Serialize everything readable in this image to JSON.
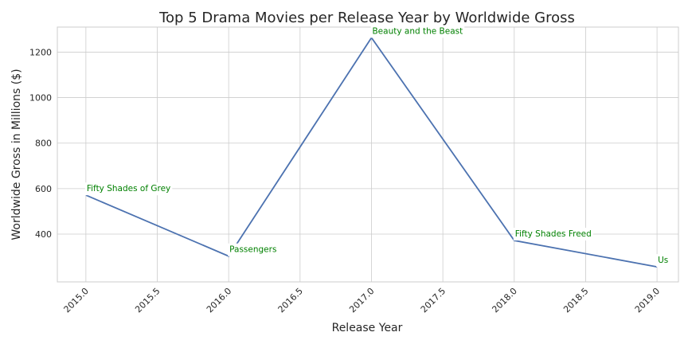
{
  "chart_data": {
    "type": "line",
    "title": "Top 5 Drama Movies per Release Year by Worldwide Gross",
    "xlabel": "Release Year",
    "ylabel": "Worldwide Gross in Millions ($)",
    "xlim": [
      2014.8,
      2019.15
    ],
    "ylim": [
      190,
      1310
    ],
    "xticks": [
      2015.0,
      2015.5,
      2016.0,
      2016.5,
      2017.0,
      2017.5,
      2018.0,
      2018.5,
      2019.0
    ],
    "xtick_labels": [
      "2015.0",
      "2015.5",
      "2016.0",
      "2016.5",
      "2017.0",
      "2017.5",
      "2018.0",
      "2018.5",
      "2019.0"
    ],
    "yticks": [
      400,
      600,
      800,
      1000,
      1200
    ],
    "ytick_labels": [
      "400",
      "600",
      "800",
      "1000",
      "1200"
    ],
    "grid": true,
    "x": [
      2015,
      2016,
      2017,
      2018,
      2019
    ],
    "y": [
      571,
      303,
      1263,
      372,
      256
    ],
    "annotations": [
      "Fifty Shades of Grey",
      "Passengers",
      "Beauty and the Beast",
      "Fifty Shades Freed",
      "Us"
    ],
    "colors": {
      "line": "#4c72b0",
      "annotation": "#008000"
    }
  }
}
